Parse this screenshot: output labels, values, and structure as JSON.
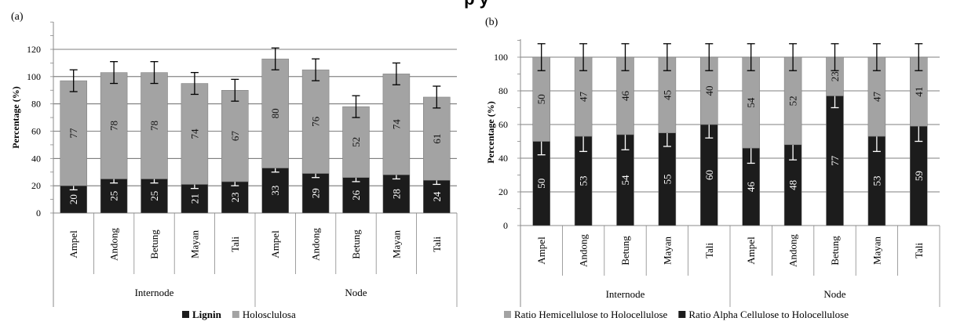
{
  "page": {
    "clipped_title": "p            y"
  },
  "colors": {
    "dark_series": "#1c1c1c",
    "light_series": "#a3a3a3",
    "grid": "#555555",
    "axis": "#888888",
    "label_on_light": "#111111",
    "label_on_dark": "#ffffff"
  },
  "chart_data": [
    {
      "type": "bar",
      "stacked": true,
      "panel_label": "(a)",
      "ylabel": "Percentage (%)",
      "ylim": [
        0,
        140
      ],
      "yticks": [
        0,
        20,
        40,
        60,
        80,
        100,
        120
      ],
      "grid": true,
      "legend_position": "bottom",
      "categories": [
        "Ampel",
        "Andong",
        "Betung",
        "Mayan",
        "Tali",
        "Ampel",
        "Andong",
        "Betung",
        "Mayan",
        "Tali"
      ],
      "groups": [
        {
          "label": "Internode",
          "span": 5
        },
        {
          "label": "Node",
          "span": 5
        }
      ],
      "series": [
        {
          "name": "Lignin",
          "values": [
            20,
            25,
            25,
            21,
            23,
            33,
            29,
            26,
            28,
            24
          ],
          "labels": [
            "20",
            "25",
            "25",
            "21",
            "23",
            "33",
            "29",
            "26",
            "28",
            "24"
          ],
          "error": [
            3,
            3,
            3,
            3,
            3,
            3,
            3,
            3,
            3,
            3
          ]
        },
        {
          "name": "Holosclulosa",
          "values": [
            77,
            78,
            78,
            74,
            67,
            80,
            76,
            52,
            74,
            61
          ],
          "labels": [
            "77",
            "78",
            "78",
            "74",
            "67",
            "80",
            "76",
            "52",
            "74",
            "61"
          ],
          "error": [
            8,
            8,
            8,
            8,
            8,
            8,
            8,
            8,
            8,
            8
          ]
        }
      ]
    },
    {
      "type": "bar",
      "stacked": true,
      "panel_label": "(b)",
      "ylabel": "Percentage (%)",
      "ylim": [
        0,
        120
      ],
      "yticks": [
        0,
        20,
        40,
        60,
        80,
        100
      ],
      "grid": true,
      "legend_position": "bottom",
      "categories": [
        "Ampel",
        "Andong",
        "Betung",
        "Mayan",
        "Tali",
        "Ampel",
        "Andong",
        "Betung",
        "Mayan",
        "Tali"
      ],
      "groups": [
        {
          "label": "Internode",
          "span": 5
        },
        {
          "label": "Node",
          "span": 5
        }
      ],
      "series": [
        {
          "name": "Ratio Alpha Cellulose to Holocellulose",
          "values": [
            50,
            53,
            54,
            55,
            60,
            46,
            48,
            77,
            53,
            59
          ],
          "labels": [
            "50",
            "53",
            "54",
            "55",
            "60",
            "46",
            "48",
            "77",
            "53",
            "59"
          ],
          "error": [
            8,
            9,
            9,
            8,
            8,
            9,
            9,
            7,
            9,
            9
          ]
        },
        {
          "name": "Ratio Hemicellulose to Holocellulose",
          "values": [
            50,
            47,
            46,
            45,
            40,
            54,
            52,
            23,
            47,
            41
          ],
          "labels": [
            "50",
            "47",
            "46",
            "45",
            "40",
            "54",
            "52",
            "23",
            "47",
            "41"
          ],
          "error": [
            8,
            8,
            8,
            8,
            8,
            8,
            8,
            8,
            8,
            8
          ]
        }
      ]
    }
  ]
}
